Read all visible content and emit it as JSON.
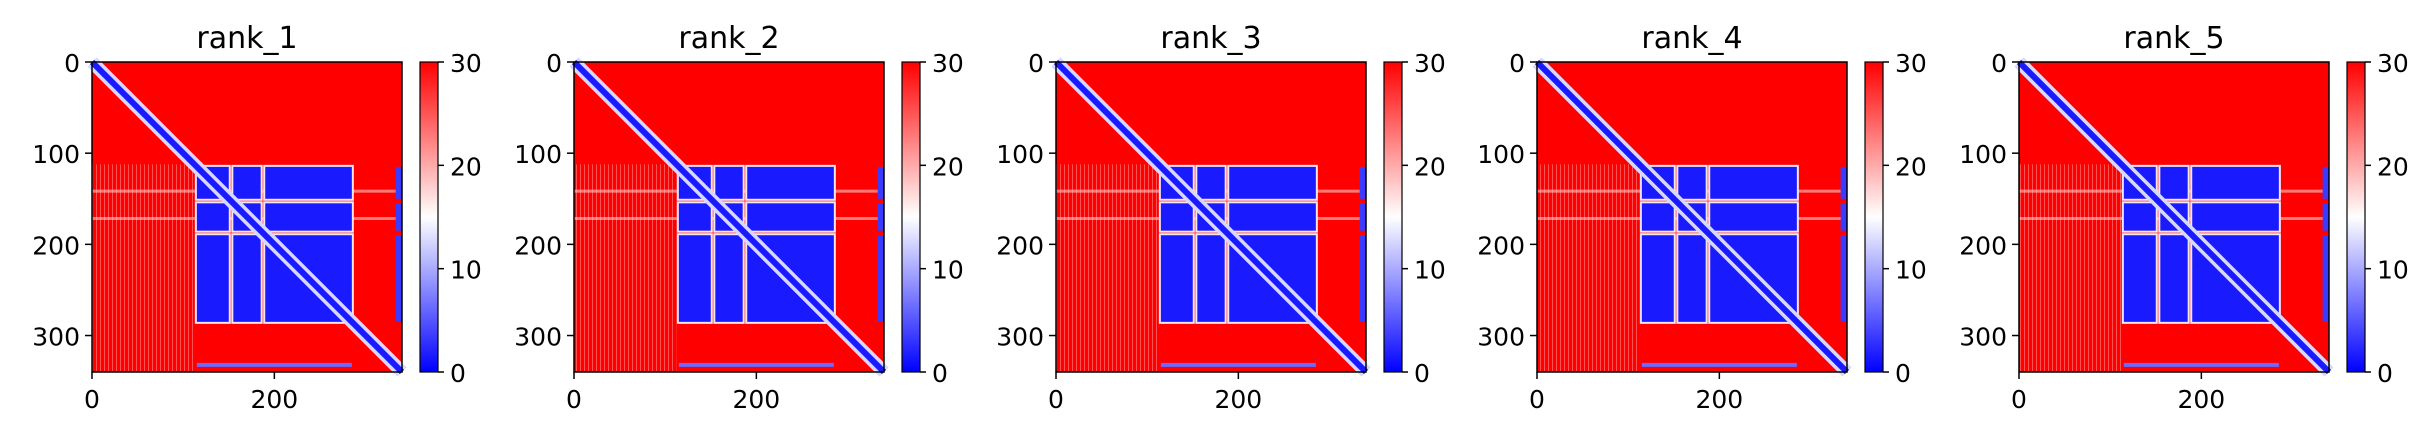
{
  "chart_data": [
    {
      "type": "heatmap",
      "title": "rank_1",
      "matrix_size": 340,
      "xticks": [
        0,
        200
      ],
      "yticks": [
        0,
        100,
        200,
        300
      ],
      "colorbar": {
        "range": [
          0,
          30
        ],
        "ticks": [
          0,
          10,
          20,
          30
        ],
        "cmap": "bwr"
      },
      "low_value_blocks": [
        [
          115,
          150
        ],
        [
          155,
          185
        ],
        [
          190,
          285
        ]
      ]
    },
    {
      "type": "heatmap",
      "title": "rank_2",
      "matrix_size": 340,
      "xticks": [
        0,
        200
      ],
      "yticks": [
        0,
        100,
        200,
        300
      ],
      "colorbar": {
        "range": [
          0,
          30
        ],
        "ticks": [
          0,
          10,
          20,
          30
        ],
        "cmap": "bwr"
      },
      "low_value_blocks": [
        [
          115,
          150
        ],
        [
          155,
          185
        ],
        [
          190,
          285
        ]
      ]
    },
    {
      "type": "heatmap",
      "title": "rank_3",
      "matrix_size": 340,
      "xticks": [
        0,
        200
      ],
      "yticks": [
        0,
        100,
        200,
        300
      ],
      "colorbar": {
        "range": [
          0,
          30
        ],
        "ticks": [
          0,
          10,
          20,
          30
        ],
        "cmap": "bwr"
      },
      "low_value_blocks": [
        [
          115,
          150
        ],
        [
          155,
          185
        ],
        [
          190,
          285
        ]
      ]
    },
    {
      "type": "heatmap",
      "title": "rank_4",
      "matrix_size": 340,
      "xticks": [
        0,
        200
      ],
      "yticks": [
        0,
        100,
        200,
        300
      ],
      "colorbar": {
        "range": [
          0,
          30
        ],
        "ticks": [
          0,
          10,
          20,
          30
        ],
        "cmap": "bwr"
      },
      "low_value_blocks": [
        [
          115,
          150
        ],
        [
          155,
          185
        ],
        [
          190,
          285
        ]
      ]
    },
    {
      "type": "heatmap",
      "title": "rank_5",
      "matrix_size": 340,
      "xticks": [
        0,
        200
      ],
      "yticks": [
        0,
        100,
        200,
        300
      ],
      "colorbar": {
        "range": [
          0,
          30
        ],
        "ticks": [
          0,
          10,
          20,
          30
        ],
        "cmap": "bwr"
      },
      "low_value_blocks": [
        [
          115,
          150
        ],
        [
          155,
          185
        ],
        [
          190,
          285
        ]
      ]
    }
  ],
  "colors": {
    "high": "#ff0000",
    "mid": "#ffffff",
    "low": "#0000ff",
    "axis": "#000000"
  }
}
